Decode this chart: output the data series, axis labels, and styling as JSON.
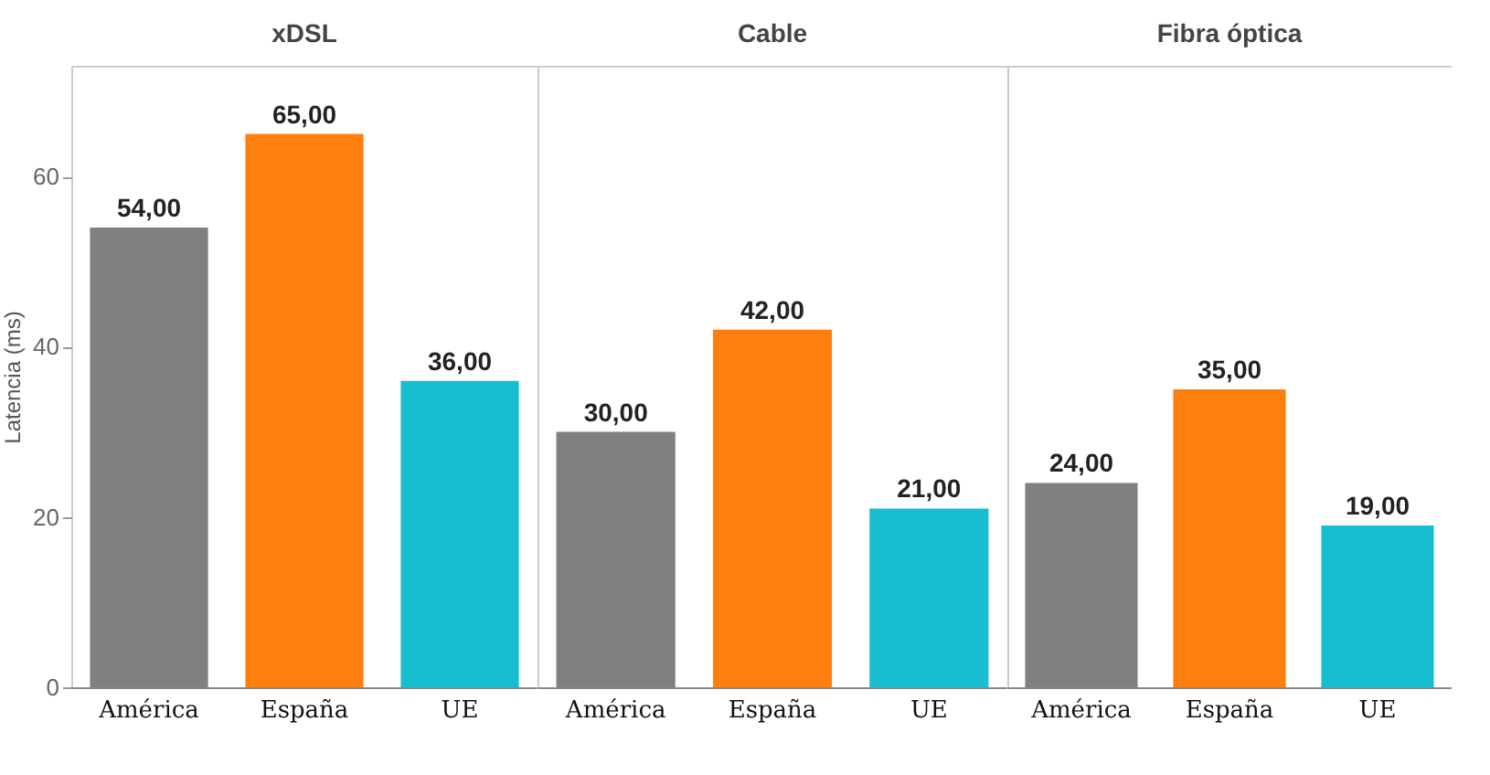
{
  "chart_data": [
    {
      "type": "bar",
      "title": "xDSL",
      "ylabel": "Latencia (ms)",
      "categories": [
        "América",
        "España",
        "UE"
      ],
      "values": [
        54,
        65,
        36
      ],
      "colors": [
        "#808080",
        "#ff7f0e",
        "#17becf"
      ],
      "value_labels": [
        "54,00",
        "65,00",
        "36,00"
      ],
      "ylim": [
        0,
        73
      ],
      "yticks": [
        0,
        20,
        40,
        60
      ]
    },
    {
      "type": "bar",
      "title": "Cable",
      "categories": [
        "América",
        "España",
        "UE"
      ],
      "values": [
        30,
        42,
        21
      ],
      "colors": [
        "#808080",
        "#ff7f0e",
        "#17becf"
      ],
      "value_labels": [
        "30,00",
        "42,00",
        "21,00"
      ],
      "ylim": [
        0,
        73
      ],
      "yticks": [
        0,
        20,
        40,
        60
      ],
      "tick_labels": "x"
    },
    {
      "type": "bar",
      "title": "Fibra óptica",
      "categories": [
        "América",
        "España",
        "UE"
      ],
      "values": [
        24,
        35,
        19
      ],
      "colors": [
        "#808080",
        "#ff7f0e",
        "#17becf"
      ],
      "value_labels": [
        "24,00",
        "35,00",
        "19,00"
      ],
      "ylim": [
        0,
        73
      ],
      "yticks": [
        0,
        20,
        40,
        60
      ],
      "tick_labels": "x"
    }
  ]
}
